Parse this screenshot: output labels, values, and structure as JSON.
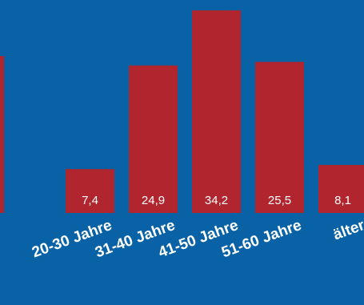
{
  "colors": {
    "background": "#0862a5",
    "bar": "#b0252e",
    "text": "#ffffff"
  },
  "chart_data": {
    "type": "bar",
    "categories": [
      "20-30 Jahre",
      "31-40 Jahre",
      "41-50 Jahre",
      "51-60 Jahre",
      "älter"
    ],
    "values": [
      7.4,
      24.9,
      34.2,
      25.5,
      8.1
    ],
    "value_labels": [
      "7,4",
      "24,9",
      "34,2",
      "25,5",
      "8,1"
    ],
    "partial_bar_left_edge": {
      "category": "",
      "value": null
    }
  }
}
